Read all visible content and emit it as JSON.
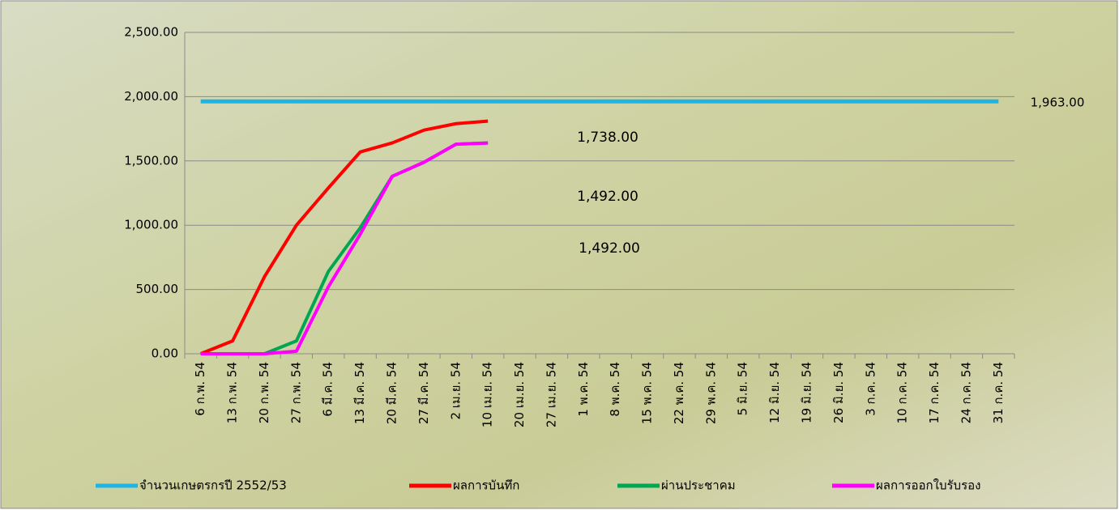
{
  "chart_data": {
    "type": "line",
    "categories": [
      "6 ก.พ. 54",
      "13 ก.พ. 54",
      "20 ก.พ. 54",
      "27 ก.พ. 54",
      "6 มี.ค. 54",
      "13 มี.ค. 54",
      "20 มี.ค. 54",
      "27 มี.ค. 54",
      "2 เม.ย. 54",
      "10 เม.ย. 54",
      "20 เม.ย. 54",
      "27 เม.ย. 54",
      "1 พ.ค. 54",
      "8 พ.ค. 54",
      "15 พ.ค. 54",
      "22 พ.ค. 54",
      "29 พ.ค. 54",
      "5 มิ.ย. 54",
      "12 มิ.ย. 54",
      "19 มิ.ย. 54",
      "26 มิ.ย. 54",
      "3 ก.ค. 54",
      "10 ก.ค. 54",
      "17 ก.ค. 54",
      "24 ก.ค. 54",
      "31 ก.ค. 54"
    ],
    "series": [
      {
        "name": "จำนวนเกษตรกรปี  2552/53",
        "color": "#1fb4e6",
        "values": [
          1963,
          1963,
          1963,
          1963,
          1963,
          1963,
          1963,
          1963,
          1963,
          1963,
          1963,
          1963,
          1963,
          1963,
          1963,
          1963,
          1963,
          1963,
          1963,
          1963,
          1963,
          1963,
          1963,
          1963,
          1963,
          1963
        ]
      },
      {
        "name": "ผลการบันทึก",
        "color": "#ff0000",
        "values": [
          0,
          100,
          600,
          1000,
          1290,
          1570,
          1640,
          1740,
          1790,
          1810,
          null,
          null,
          null,
          null,
          null,
          null,
          null,
          null,
          null,
          null,
          null,
          null,
          null,
          null,
          null,
          null
        ]
      },
      {
        "name": "ผ่านประชาคม",
        "color": "#00a651",
        "values": [
          0,
          0,
          0,
          100,
          640,
          980,
          1380,
          1490,
          1630,
          1640,
          null,
          null,
          null,
          null,
          null,
          null,
          null,
          null,
          null,
          null,
          null,
          null,
          null,
          null,
          null,
          null
        ]
      },
      {
        "name": "ผลการออกใบรับรอง",
        "color": "#ff00ff",
        "values": [
          0,
          0,
          0,
          20,
          520,
          930,
          1380,
          1490,
          1630,
          1640,
          null,
          null,
          null,
          null,
          null,
          null,
          null,
          null,
          null,
          null,
          null,
          null,
          null,
          null,
          null,
          null
        ]
      }
    ],
    "annotations": [
      {
        "text": "1,963.00",
        "color": "#000000"
      },
      {
        "text": "1,738.00",
        "color": "#ff0000"
      },
      {
        "text": "1,492.00",
        "color": "#00a651"
      },
      {
        "text": "1,492.00",
        "color": "#e000e0"
      }
    ],
    "ylim": [
      0,
      2500
    ],
    "yticks": [
      {
        "value": 0,
        "label": "0.00"
      },
      {
        "value": 500,
        "label": "500.00"
      },
      {
        "value": 1000,
        "label": "1,000.00"
      },
      {
        "value": 1500,
        "label": "1,500.00"
      },
      {
        "value": 2000,
        "label": "2,000.00"
      },
      {
        "value": 2500,
        "label": "2,500.00"
      }
    ],
    "grid": true,
    "legend": "bottom"
  }
}
